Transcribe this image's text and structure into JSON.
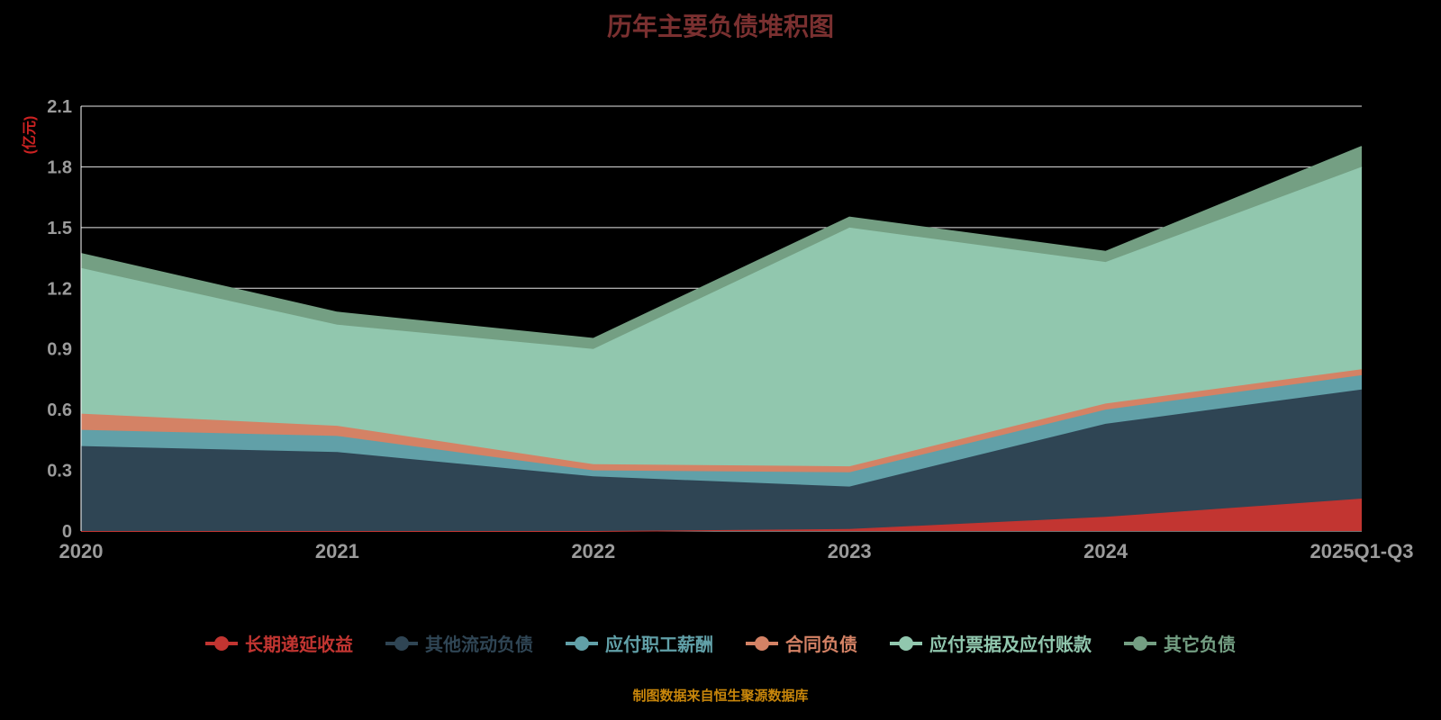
{
  "title": "历年主要负债堆积图",
  "caption": "制图数据来自恒生聚源数据库",
  "colors": {
    "background": "#000000",
    "grid": "#ffffff",
    "axis_line": "#ffffff",
    "tick_label": "#9b9b9b",
    "title": "#7a3030",
    "y_axis_label": "#cc2222",
    "caption": "#c8860b"
  },
  "chart_data": {
    "type": "area",
    "stacked": true,
    "title": "历年主要负债堆积图",
    "xlabel": "",
    "ylabel": "(亿元)",
    "x": [
      "2020",
      "2021",
      "2022",
      "2023",
      "2024",
      "2025Q1-Q3"
    ],
    "ylim": [
      0,
      2.1
    ],
    "yticks": [
      0,
      0.3,
      0.6,
      0.9,
      1.2,
      1.5,
      1.8,
      2.1
    ],
    "grid": true,
    "legend_position": "bottom",
    "series": [
      {
        "id": "long-term-deferred-income",
        "name": "长期递延收益",
        "color": "#c23531",
        "values": [
          0.0,
          0.0,
          0.0,
          0.01,
          0.07,
          0.16
        ]
      },
      {
        "id": "other-current-liabilities",
        "name": "其他流动负债",
        "color": "#2f4554",
        "values": [
          0.42,
          0.39,
          0.27,
          0.21,
          0.46,
          0.54
        ]
      },
      {
        "id": "employee-compensation-payable",
        "name": "应付职工薪酬",
        "color": "#61a0a8",
        "values": [
          0.08,
          0.08,
          0.03,
          0.07,
          0.07,
          0.07
        ]
      },
      {
        "id": "contract-liabilities",
        "name": "合同负债",
        "color": "#d48265",
        "values": [
          0.08,
          0.05,
          0.03,
          0.03,
          0.03,
          0.03
        ]
      },
      {
        "id": "notes-and-accounts-payable",
        "name": "应付票据及应付账款",
        "color": "#91c7ae",
        "values": [
          0.72,
          0.5,
          0.57,
          1.18,
          0.7,
          1.0
        ]
      },
      {
        "id": "other-liabilities",
        "name": "其它负债",
        "color": "#749f83",
        "values": [
          0.07,
          0.06,
          0.05,
          0.05,
          0.05,
          0.1
        ]
      }
    ]
  }
}
